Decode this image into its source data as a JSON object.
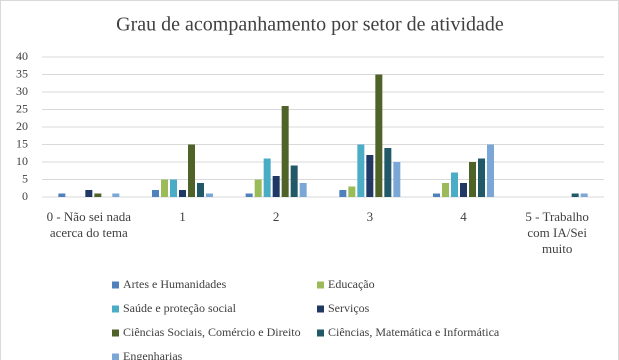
{
  "chart_data": {
    "type": "bar",
    "title": "Grau de acompanhamento por setor de atividade",
    "categories": [
      "0 - Não sei nada acerca do tema",
      "1",
      "2",
      "3",
      "4",
      "5 - Trabalho com IA/Sei muito"
    ],
    "series": [
      {
        "name": "Artes e Humanidades",
        "color": "#4f81bd",
        "values": [
          1,
          2,
          1,
          2,
          1,
          0
        ]
      },
      {
        "name": "Educação",
        "color": "#9bbb59",
        "values": [
          0,
          5,
          5,
          3,
          4,
          0
        ]
      },
      {
        "name": "Saúde e proteção social",
        "color": "#4bacc6",
        "values": [
          0,
          5,
          11,
          15,
          7,
          0
        ]
      },
      {
        "name": "Serviços",
        "color": "#1f3864",
        "values": [
          2,
          2,
          6,
          12,
          4,
          0
        ]
      },
      {
        "name": "Ciências Sociais, Comércio e Direito",
        "color": "#4f6228",
        "values": [
          1,
          15,
          26,
          35,
          10,
          0
        ]
      },
      {
        "name": "Ciências, Matemática e Informática",
        "color": "#215968",
        "values": [
          0,
          4,
          9,
          14,
          11,
          1
        ]
      },
      {
        "name": "Engenharias",
        "color": "#7ba7d7",
        "values": [
          1,
          1,
          4,
          10,
          15,
          1
        ]
      }
    ],
    "ylim": [
      0,
      40
    ],
    "yticks": [
      0,
      5,
      10,
      15,
      20,
      25,
      30,
      35,
      40
    ],
    "grid": true
  }
}
